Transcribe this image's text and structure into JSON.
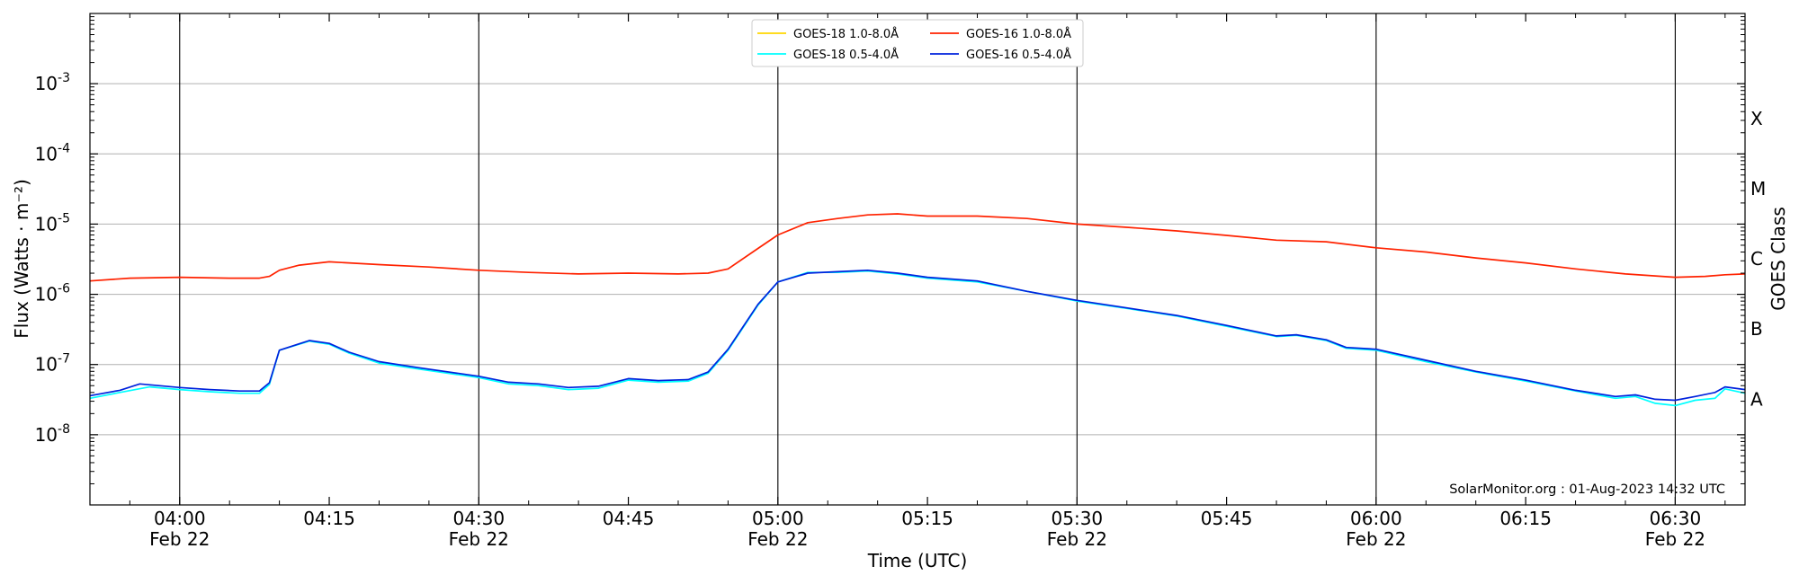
{
  "chart_data": {
    "type": "line",
    "xlabel": "Time (UTC)",
    "ylabel": "Flux (Watts · m⁻²)",
    "right_axis_label": "GOES Class",
    "credit": "SolarMonitor.org : 01-Aug-2023 14:32 UTC",
    "x_range": [
      "03:51",
      "06:37"
    ],
    "y_range": [
      1e-09,
      0.01
    ],
    "y_scale": "log",
    "grid": "horizontal at decades, vertical at half-hours",
    "legend_position": "top-center",
    "x_ticks": [
      {
        "time": "04:00",
        "date": "Feb 22",
        "major": true
      },
      {
        "time": "04:15",
        "date": "",
        "major": false
      },
      {
        "time": "04:30",
        "date": "Feb 22",
        "major": true
      },
      {
        "time": "04:45",
        "date": "",
        "major": false
      },
      {
        "time": "05:00",
        "date": "Feb 22",
        "major": true
      },
      {
        "time": "05:15",
        "date": "",
        "major": false
      },
      {
        "time": "05:30",
        "date": "Feb 22",
        "major": true
      },
      {
        "time": "05:45",
        "date": "",
        "major": false
      },
      {
        "time": "06:00",
        "date": "Feb 22",
        "major": true
      },
      {
        "time": "06:15",
        "date": "",
        "major": false
      },
      {
        "time": "06:30",
        "date": "Feb 22",
        "major": true
      }
    ],
    "y_ticks": [
      {
        "exp": "-3",
        "value": 0.001
      },
      {
        "exp": "-4",
        "value": 0.0001
      },
      {
        "exp": "-5",
        "value": 1e-05
      },
      {
        "exp": "-6",
        "value": 1e-06
      },
      {
        "exp": "-7",
        "value": 1e-07
      },
      {
        "exp": "-8",
        "value": 1e-08
      }
    ],
    "class_labels": [
      {
        "label": "X",
        "value": 0.00032
      },
      {
        "label": "M",
        "value": 3.2e-05
      },
      {
        "label": "C",
        "value": 3.2e-06
      },
      {
        "label": "B",
        "value": 3.2e-07
      },
      {
        "label": "A",
        "value": 3.2e-08
      }
    ],
    "legend": [
      {
        "label": "GOES-18 1.0-8.0Å",
        "series": 0
      },
      {
        "label": "GOES-18 0.5-4.0Å",
        "series": 1
      },
      {
        "label": "GOES-16 1.0-8.0Å",
        "series": 2
      },
      {
        "label": "GOES-16 0.5-4.0Å",
        "series": 3
      }
    ],
    "series": [
      {
        "name": "GOES-18 1.0-8.0Å",
        "color": "#ffd700",
        "points": []
      },
      {
        "name": "GOES-18 0.5-4.0Å",
        "color": "#00ffff",
        "points": [
          [
            "03:51",
            3.3e-08
          ],
          [
            "03:54",
            4e-08
          ],
          [
            "03:57",
            4.8e-08
          ],
          [
            "04:00",
            4.4e-08
          ],
          [
            "04:03",
            4.1e-08
          ],
          [
            "04:06",
            3.9e-08
          ],
          [
            "04:08",
            3.9e-08
          ],
          [
            "04:09",
            5.2e-08
          ],
          [
            "04:10",
            1.6e-07
          ],
          [
            "04:13",
            2.15e-07
          ],
          [
            "04:15",
            1.95e-07
          ],
          [
            "04:17",
            1.45e-07
          ],
          [
            "04:20",
            1.05e-07
          ],
          [
            "04:24",
            8.6e-08
          ],
          [
            "04:30",
            6.5e-08
          ],
          [
            "04:33",
            5.3e-08
          ],
          [
            "04:36",
            5e-08
          ],
          [
            "04:39",
            4.4e-08
          ],
          [
            "04:42",
            4.6e-08
          ],
          [
            "04:45",
            6e-08
          ],
          [
            "04:48",
            5.6e-08
          ],
          [
            "04:51",
            5.8e-08
          ],
          [
            "04:53",
            7.5e-08
          ],
          [
            "04:55",
            1.6e-07
          ],
          [
            "04:58",
            7e-07
          ],
          [
            "05:00",
            1.5e-06
          ],
          [
            "05:03",
            2.05e-06
          ],
          [
            "05:06",
            2.05e-06
          ],
          [
            "05:09",
            2.15e-06
          ],
          [
            "05:12",
            1.95e-06
          ],
          [
            "05:15",
            1.7e-06
          ],
          [
            "05:20",
            1.5e-06
          ],
          [
            "05:25",
            1.1e-06
          ],
          [
            "05:30",
            8e-07
          ],
          [
            "05:35",
            6.3e-07
          ],
          [
            "05:40",
            4.9e-07
          ],
          [
            "05:45",
            3.5e-07
          ],
          [
            "05:50",
            2.5e-07
          ],
          [
            "05:52",
            2.6e-07
          ],
          [
            "05:55",
            2.2e-07
          ],
          [
            "05:57",
            1.7e-07
          ],
          [
            "06:00",
            1.6e-07
          ],
          [
            "06:05",
            1.1e-07
          ],
          [
            "06:10",
            7.8e-08
          ],
          [
            "06:15",
            5.8e-08
          ],
          [
            "06:20",
            4.2e-08
          ],
          [
            "06:24",
            3.3e-08
          ],
          [
            "06:26",
            3.5e-08
          ],
          [
            "06:28",
            2.8e-08
          ],
          [
            "06:30",
            2.6e-08
          ],
          [
            "06:32",
            3.1e-08
          ],
          [
            "06:34",
            3.3e-08
          ],
          [
            "06:35",
            4.5e-08
          ],
          [
            "06:37",
            3.9e-08
          ]
        ]
      },
      {
        "name": "GOES-16 1.0-8.0Å",
        "color": "#ff2200",
        "points": [
          [
            "03:51",
            1.55e-06
          ],
          [
            "03:55",
            1.7e-06
          ],
          [
            "04:00",
            1.75e-06
          ],
          [
            "04:05",
            1.7e-06
          ],
          [
            "04:08",
            1.7e-06
          ],
          [
            "04:09",
            1.8e-06
          ],
          [
            "04:10",
            2.2e-06
          ],
          [
            "04:12",
            2.6e-06
          ],
          [
            "04:15",
            2.9e-06
          ],
          [
            "04:20",
            2.65e-06
          ],
          [
            "04:25",
            2.45e-06
          ],
          [
            "04:30",
            2.2e-06
          ],
          [
            "04:35",
            2.05e-06
          ],
          [
            "04:40",
            1.95e-06
          ],
          [
            "04:45",
            2e-06
          ],
          [
            "04:50",
            1.95e-06
          ],
          [
            "04:53",
            2e-06
          ],
          [
            "04:55",
            2.3e-06
          ],
          [
            "04:58",
            4.5e-06
          ],
          [
            "05:00",
            7e-06
          ],
          [
            "05:03",
            1.05e-05
          ],
          [
            "05:06",
            1.2e-05
          ],
          [
            "05:09",
            1.35e-05
          ],
          [
            "05:12",
            1.4e-05
          ],
          [
            "05:15",
            1.3e-05
          ],
          [
            "05:20",
            1.3e-05
          ],
          [
            "05:25",
            1.2e-05
          ],
          [
            "05:30",
            1e-05
          ],
          [
            "05:35",
            9e-06
          ],
          [
            "05:40",
            8e-06
          ],
          [
            "05:45",
            6.9e-06
          ],
          [
            "05:50",
            5.9e-06
          ],
          [
            "05:55",
            5.6e-06
          ],
          [
            "06:00",
            4.6e-06
          ],
          [
            "06:05",
            4e-06
          ],
          [
            "06:10",
            3.3e-06
          ],
          [
            "06:15",
            2.8e-06
          ],
          [
            "06:20",
            2.3e-06
          ],
          [
            "06:25",
            1.95e-06
          ],
          [
            "06:30",
            1.75e-06
          ],
          [
            "06:33",
            1.8e-06
          ],
          [
            "06:35",
            1.9e-06
          ],
          [
            "06:37",
            1.95e-06
          ]
        ]
      },
      {
        "name": "GOES-16 0.5-4.0Å",
        "color": "#0022dd",
        "points": [
          [
            "03:51",
            3.6e-08
          ],
          [
            "03:54",
            4.3e-08
          ],
          [
            "03:56",
            5.3e-08
          ],
          [
            "04:00",
            4.7e-08
          ],
          [
            "04:03",
            4.4e-08
          ],
          [
            "04:06",
            4.2e-08
          ],
          [
            "04:08",
            4.2e-08
          ],
          [
            "04:09",
            5.5e-08
          ],
          [
            "04:10",
            1.6e-07
          ],
          [
            "04:13",
            2.2e-07
          ],
          [
            "04:15",
            2e-07
          ],
          [
            "04:17",
            1.5e-07
          ],
          [
            "04:20",
            1.1e-07
          ],
          [
            "04:24",
            9e-08
          ],
          [
            "04:30",
            6.8e-08
          ],
          [
            "04:33",
            5.6e-08
          ],
          [
            "04:36",
            5.3e-08
          ],
          [
            "04:39",
            4.7e-08
          ],
          [
            "04:42",
            4.9e-08
          ],
          [
            "04:45",
            6.3e-08
          ],
          [
            "04:48",
            5.9e-08
          ],
          [
            "04:51",
            6.1e-08
          ],
          [
            "04:53",
            7.8e-08
          ],
          [
            "04:55",
            1.65e-07
          ],
          [
            "04:58",
            7.2e-07
          ],
          [
            "05:00",
            1.5e-06
          ],
          [
            "05:03",
            2e-06
          ],
          [
            "05:06",
            2.1e-06
          ],
          [
            "05:09",
            2.2e-06
          ],
          [
            "05:12",
            2e-06
          ],
          [
            "05:15",
            1.75e-06
          ],
          [
            "05:20",
            1.55e-06
          ],
          [
            "05:25",
            1.1e-06
          ],
          [
            "05:30",
            8.2e-07
          ],
          [
            "05:35",
            6.4e-07
          ],
          [
            "05:40",
            5e-07
          ],
          [
            "05:45",
            3.6e-07
          ],
          [
            "05:50",
            2.55e-07
          ],
          [
            "05:52",
            2.65e-07
          ],
          [
            "05:55",
            2.25e-07
          ],
          [
            "05:57",
            1.75e-07
          ],
          [
            "06:00",
            1.65e-07
          ],
          [
            "06:05",
            1.15e-07
          ],
          [
            "06:10",
            8e-08
          ],
          [
            "06:15",
            6e-08
          ],
          [
            "06:20",
            4.3e-08
          ],
          [
            "06:24",
            3.5e-08
          ],
          [
            "06:26",
            3.7e-08
          ],
          [
            "06:28",
            3.2e-08
          ],
          [
            "06:30",
            3.1e-08
          ],
          [
            "06:32",
            3.5e-08
          ],
          [
            "06:34",
            4e-08
          ],
          [
            "06:35",
            4.8e-08
          ],
          [
            "06:37",
            4.4e-08
          ]
        ]
      }
    ]
  }
}
